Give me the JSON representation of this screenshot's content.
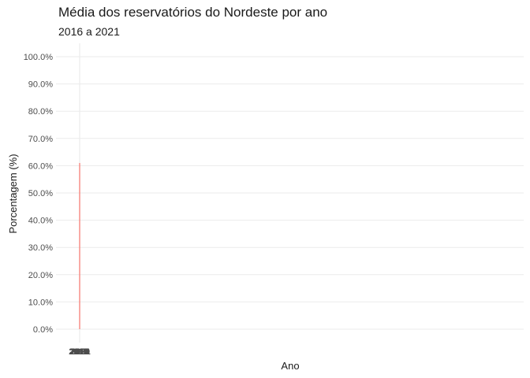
{
  "chart_data": {
    "type": "line",
    "title": "Média dos reservatórios do Nordeste por ano",
    "subtitle": "2016 a 2021",
    "xlabel": "Ano",
    "ylabel": "Porcentagem (%)",
    "ylim": [
      0,
      100
    ],
    "y_ticks": [
      0,
      10,
      20,
      30,
      40,
      50,
      60,
      70,
      80,
      90,
      100
    ],
    "y_tick_labels": [
      "0.0%",
      "10.0%",
      "20.0%",
      "30.0%",
      "40.0%",
      "50.0%",
      "60.0%",
      "70.0%",
      "80.0%",
      "90.0%",
      "100.0%"
    ],
    "x_tick_labels": [
      "2016",
      "2017",
      "2018",
      "2019",
      "2020",
      "2021"
    ],
    "series_color": "#f8766d",
    "grid": true,
    "segment": {
      "y_start": 0,
      "y_end": 61
    }
  }
}
